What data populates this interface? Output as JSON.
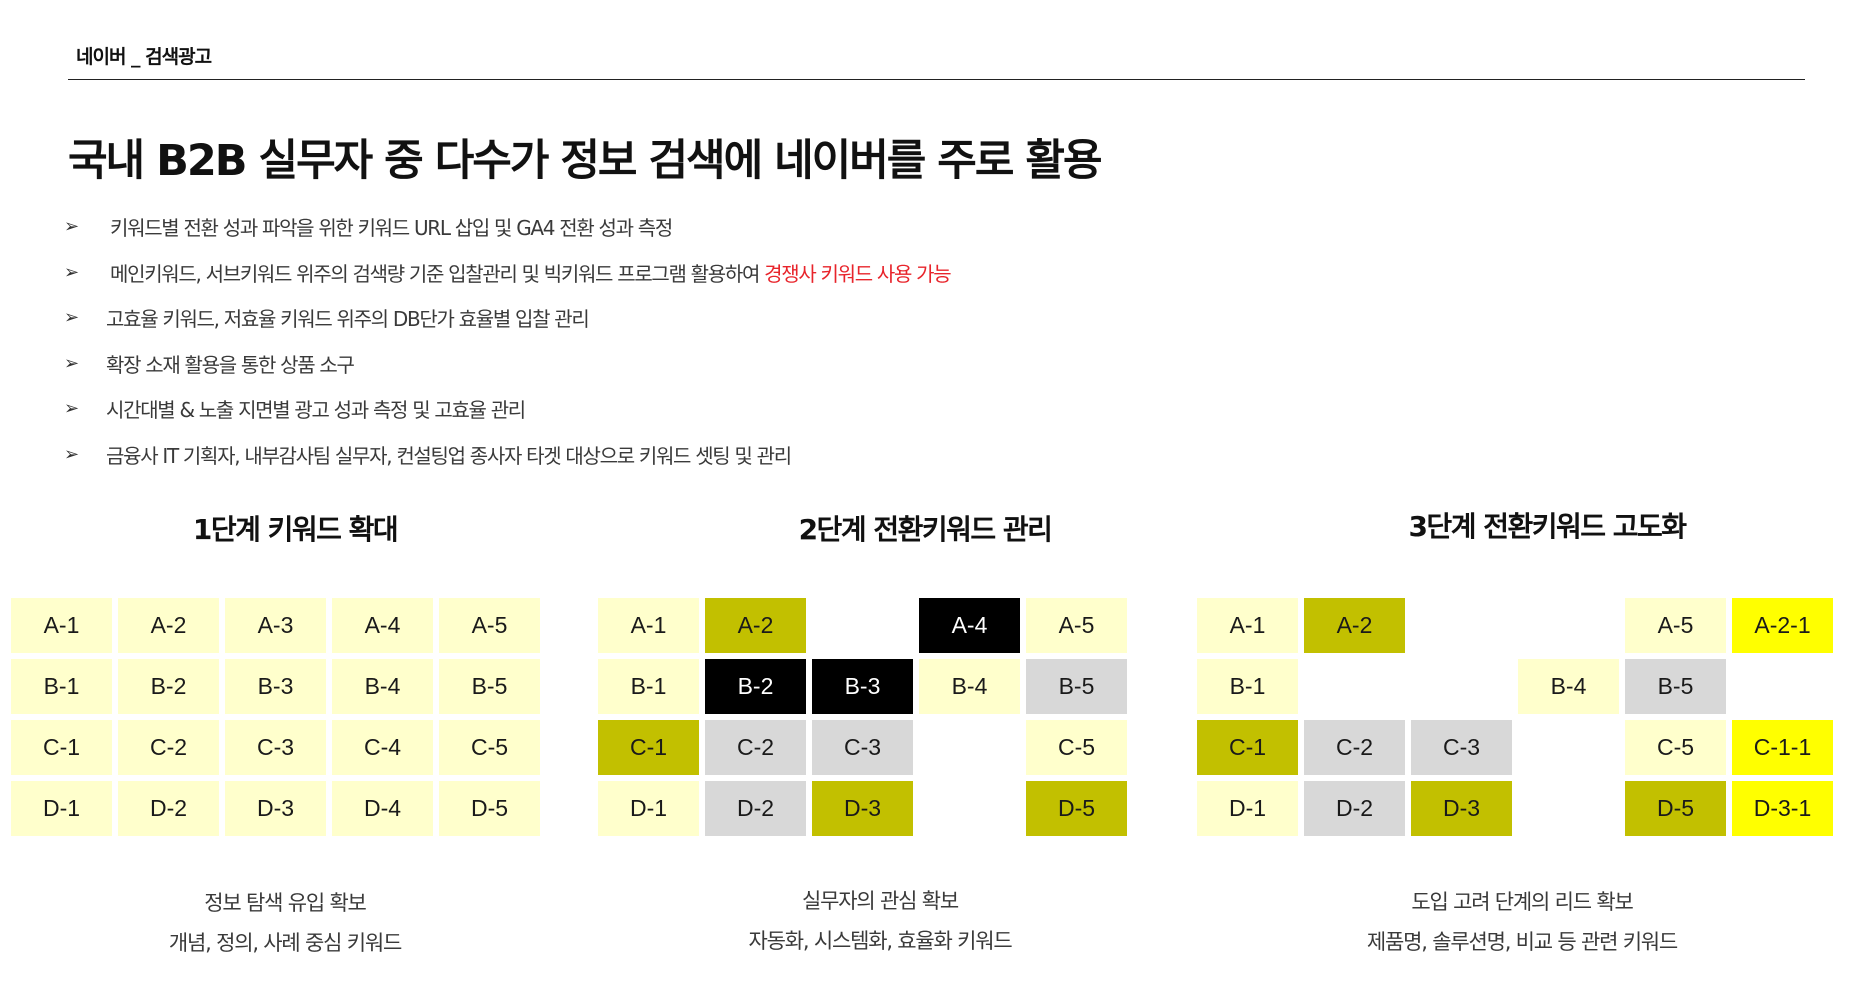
{
  "header": {
    "label": "네이버 _ 검색광고"
  },
  "title": "국내 B2B 실무자 중 다수가 정보 검색에 네이버를 주로 활용",
  "bullets": [
    {
      "text": "키워드별 전환 성과 파악을 위한 키워드 URL 삽입 및 GA4 전환 성과 측정",
      "highlight": ""
    },
    {
      "text": "메인키워드, 서브키워드 위주의 검색량 기준 입찰관리 및 빅키워드 프로그램 활용하여 ",
      "highlight": "경쟁사 키워드 사용 가능"
    },
    {
      "text": "고효율 키워드, 저효율 키워드 위주의 DB단가 효율별 입찰 관리",
      "highlight": ""
    },
    {
      "text": "확장 소재 활용을 통한 상품 소구",
      "highlight": ""
    },
    {
      "text": "시간대별 & 노출 지면별 광고 성과 측정 및 고효율 관리",
      "highlight": ""
    },
    {
      "text": "금융사 IT 기획자, 내부감사팀 실무자, 컨설팅업 종사자 타겟 대상으로 키워드 셋팅 및 관리",
      "highlight": ""
    }
  ],
  "colors": {
    "light_yellow": "#ffffcc",
    "olive": "#c2c000",
    "black": "#000000",
    "gray": "#d8d8d8",
    "bright_yellow": "#ffff00",
    "highlight_red": "#e8242b"
  },
  "stages": [
    {
      "title": "1단계 키워드 확대",
      "caption_1": "정보 탐색 유입 확보",
      "caption_2": "개념, 정의, 사례 중심 키워드",
      "cells": [
        [
          "A-1",
          "lightyellow"
        ],
        [
          "A-2",
          "lightyellow"
        ],
        [
          "A-3",
          "lightyellow"
        ],
        [
          "A-4",
          "lightyellow"
        ],
        [
          "A-5",
          "lightyellow"
        ],
        [
          "B-1",
          "lightyellow"
        ],
        [
          "B-2",
          "lightyellow"
        ],
        [
          "B-3",
          "lightyellow"
        ],
        [
          "B-4",
          "lightyellow"
        ],
        [
          "B-5",
          "lightyellow"
        ],
        [
          "C-1",
          "lightyellow"
        ],
        [
          "C-2",
          "lightyellow"
        ],
        [
          "C-3",
          "lightyellow"
        ],
        [
          "C-4",
          "lightyellow"
        ],
        [
          "C-5",
          "lightyellow"
        ],
        [
          "D-1",
          "lightyellow"
        ],
        [
          "D-2",
          "lightyellow"
        ],
        [
          "D-3",
          "lightyellow"
        ],
        [
          "D-4",
          "lightyellow"
        ],
        [
          "D-5",
          "lightyellow"
        ]
      ]
    },
    {
      "title": "2단계 전환키워드 관리",
      "caption_1": "실무자의 관심 확보",
      "caption_2": "자동화, 시스템화, 효율화 키워드",
      "cells": [
        [
          "A-1",
          "lightyellow"
        ],
        [
          "A-2",
          "olive"
        ],
        [
          "",
          "empty"
        ],
        [
          "A-4",
          "black"
        ],
        [
          "A-5",
          "lightyellow"
        ],
        [
          "B-1",
          "lightyellow"
        ],
        [
          "B-2",
          "black"
        ],
        [
          "B-3",
          "black"
        ],
        [
          "B-4",
          "lightyellow"
        ],
        [
          "B-5",
          "gray"
        ],
        [
          "C-1",
          "olive"
        ],
        [
          "C-2",
          "gray"
        ],
        [
          "C-3",
          "gray"
        ],
        [
          "",
          "empty"
        ],
        [
          "C-5",
          "lightyellow"
        ],
        [
          "D-1",
          "lightyellow"
        ],
        [
          "D-2",
          "gray"
        ],
        [
          "D-3",
          "olive"
        ],
        [
          "",
          "empty"
        ],
        [
          "D-5",
          "olive"
        ]
      ]
    },
    {
      "title": "3단계 전환키워드 고도화",
      "caption_1": "도입 고려 단계의 리드 확보",
      "caption_2": "제품명, 솔루션명, 비교 등 관련 키워드",
      "cells": [
        [
          "A-1",
          "lightyellow"
        ],
        [
          "A-2",
          "olive"
        ],
        [
          "",
          "empty"
        ],
        [
          "",
          "empty"
        ],
        [
          "A-5",
          "lightyellow"
        ],
        [
          "A-2-1",
          "yellow"
        ],
        [
          "B-1",
          "lightyellow"
        ],
        [
          "",
          "empty"
        ],
        [
          "",
          "empty"
        ],
        [
          "B-4",
          "lightyellow"
        ],
        [
          "B-5",
          "gray"
        ],
        [
          "",
          "empty"
        ],
        [
          "C-1",
          "olive"
        ],
        [
          "C-2",
          "gray"
        ],
        [
          "C-3",
          "gray"
        ],
        [
          "",
          "empty"
        ],
        [
          "C-5",
          "lightyellow"
        ],
        [
          "C-1-1",
          "yellow"
        ],
        [
          "D-1",
          "lightyellow"
        ],
        [
          "D-2",
          "gray"
        ],
        [
          "D-3",
          "olive"
        ],
        [
          "",
          "empty"
        ],
        [
          "D-5",
          "olive"
        ],
        [
          "D-3-1",
          "yellow"
        ]
      ]
    }
  ]
}
